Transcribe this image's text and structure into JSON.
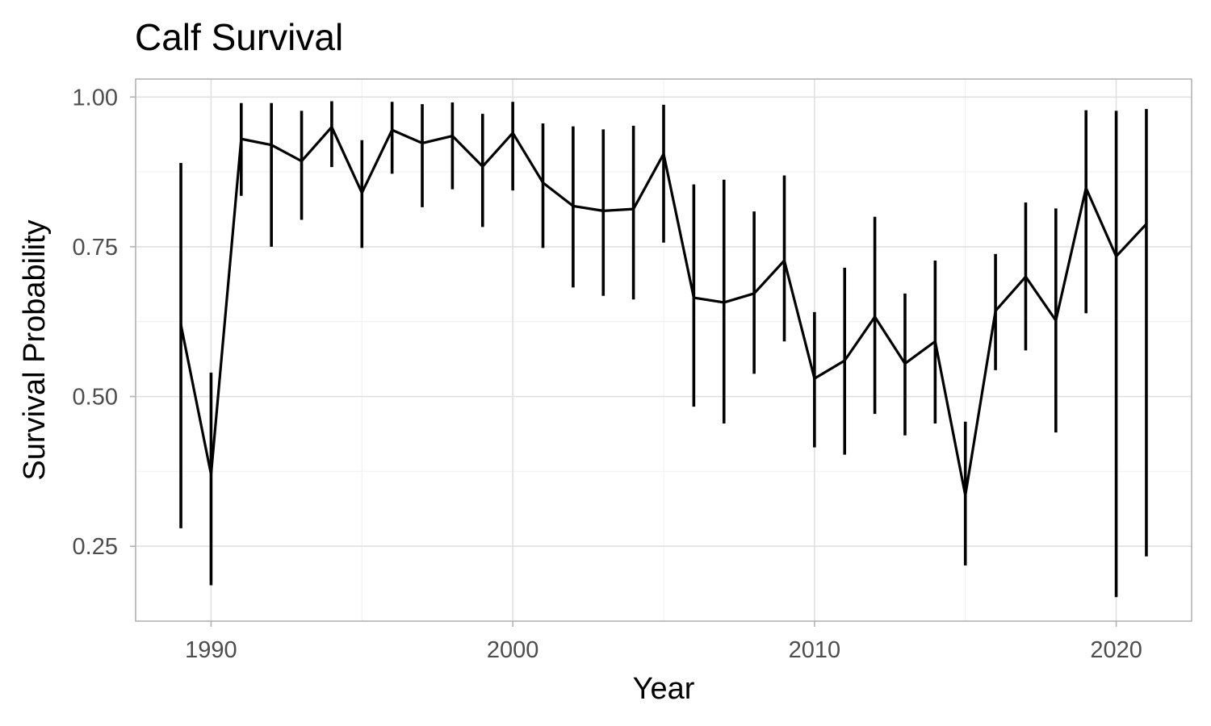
{
  "chart_data": {
    "type": "line",
    "title": "Calf Survival",
    "xlabel": "Year",
    "ylabel": "Survival Probability",
    "xlim": [
      1987.5,
      2022.5
    ],
    "ylim": [
      0.125,
      1.03
    ],
    "x_ticks": [
      1990,
      2000,
      2010,
      2020
    ],
    "x_tick_labels": [
      "1990",
      "2000",
      "2010",
      "2020"
    ],
    "y_ticks": [
      0.25,
      0.5,
      0.75,
      1.0
    ],
    "y_tick_labels": [
      "0.25",
      "0.50",
      "0.75",
      "1.00"
    ],
    "grid": true,
    "error_bars": true,
    "series": [
      {
        "color": "#000000",
        "points": [
          {
            "x": 1989,
            "y": 0.62,
            "lower": 0.28,
            "upper": 0.89
          },
          {
            "x": 1990,
            "y": 0.37,
            "lower": 0.185,
            "upper": 0.54
          },
          {
            "x": 1991,
            "y": 0.93,
            "lower": 0.835,
            "upper": 0.99
          },
          {
            "x": 1992,
            "y": 0.92,
            "lower": 0.75,
            "upper": 0.99
          },
          {
            "x": 1993,
            "y": 0.893,
            "lower": 0.795,
            "upper": 0.977
          },
          {
            "x": 1994,
            "y": 0.95,
            "lower": 0.883,
            "upper": 0.993
          },
          {
            "x": 1995,
            "y": 0.84,
            "lower": 0.748,
            "upper": 0.928
          },
          {
            "x": 1996,
            "y": 0.945,
            "lower": 0.872,
            "upper": 0.992
          },
          {
            "x": 1997,
            "y": 0.923,
            "lower": 0.816,
            "upper": 0.988
          },
          {
            "x": 1998,
            "y": 0.935,
            "lower": 0.846,
            "upper": 0.991
          },
          {
            "x": 1999,
            "y": 0.884,
            "lower": 0.783,
            "upper": 0.972
          },
          {
            "x": 2000,
            "y": 0.94,
            "lower": 0.844,
            "upper": 0.992
          },
          {
            "x": 2001,
            "y": 0.857,
            "lower": 0.748,
            "upper": 0.956
          },
          {
            "x": 2002,
            "y": 0.818,
            "lower": 0.682,
            "upper": 0.951
          },
          {
            "x": 2003,
            "y": 0.81,
            "lower": 0.668,
            "upper": 0.946
          },
          {
            "x": 2004,
            "y": 0.813,
            "lower": 0.662,
            "upper": 0.952
          },
          {
            "x": 2005,
            "y": 0.905,
            "lower": 0.757,
            "upper": 0.987
          },
          {
            "x": 2006,
            "y": 0.665,
            "lower": 0.483,
            "upper": 0.854
          },
          {
            "x": 2007,
            "y": 0.657,
            "lower": 0.455,
            "upper": 0.862
          },
          {
            "x": 2008,
            "y": 0.672,
            "lower": 0.538,
            "upper": 0.809
          },
          {
            "x": 2009,
            "y": 0.727,
            "lower": 0.592,
            "upper": 0.869
          },
          {
            "x": 2010,
            "y": 0.53,
            "lower": 0.415,
            "upper": 0.641
          },
          {
            "x": 2011,
            "y": 0.56,
            "lower": 0.403,
            "upper": 0.715
          },
          {
            "x": 2012,
            "y": 0.633,
            "lower": 0.471,
            "upper": 0.8
          },
          {
            "x": 2013,
            "y": 0.555,
            "lower": 0.435,
            "upper": 0.672
          },
          {
            "x": 2014,
            "y": 0.592,
            "lower": 0.455,
            "upper": 0.727
          },
          {
            "x": 2015,
            "y": 0.335,
            "lower": 0.218,
            "upper": 0.458
          },
          {
            "x": 2016,
            "y": 0.643,
            "lower": 0.544,
            "upper": 0.738
          },
          {
            "x": 2017,
            "y": 0.7,
            "lower": 0.577,
            "upper": 0.824
          },
          {
            "x": 2018,
            "y": 0.627,
            "lower": 0.44,
            "upper": 0.814
          },
          {
            "x": 2019,
            "y": 0.848,
            "lower": 0.639,
            "upper": 0.978
          },
          {
            "x": 2020,
            "y": 0.734,
            "lower": 0.165,
            "upper": 0.977
          },
          {
            "x": 2021,
            "y": 0.788,
            "lower": 0.233,
            "upper": 0.98
          }
        ]
      }
    ]
  }
}
